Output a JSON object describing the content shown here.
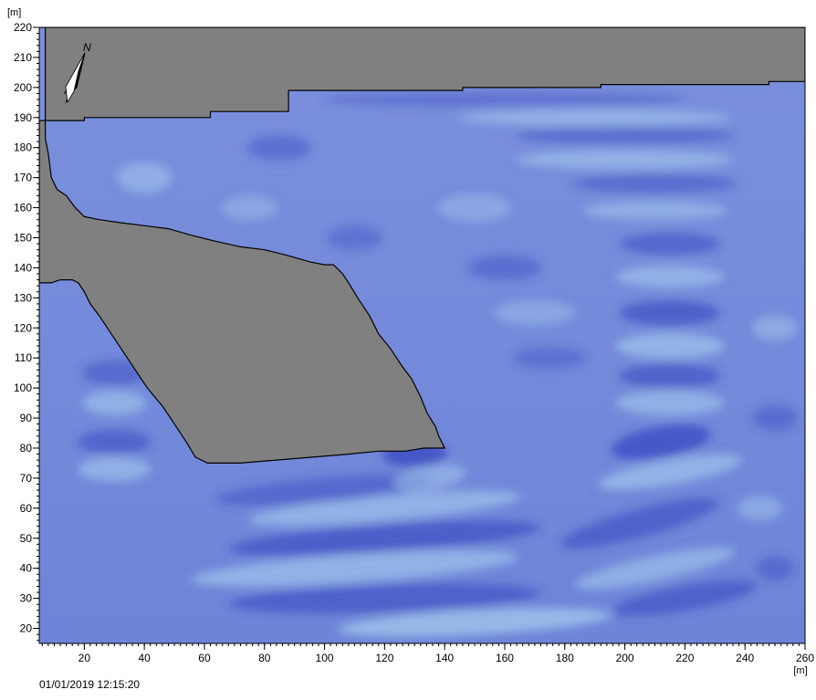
{
  "chart_data": {
    "type": "heatmap",
    "title": "",
    "xlabel": "[m]",
    "ylabel": "[m]",
    "xlim": [
      5,
      260
    ],
    "ylim": [
      15,
      220
    ],
    "x_ticks": [
      20,
      40,
      60,
      80,
      100,
      120,
      140,
      160,
      180,
      200,
      220,
      240,
      260
    ],
    "y_ticks": [
      20,
      30,
      40,
      50,
      60,
      70,
      80,
      90,
      100,
      110,
      120,
      130,
      140,
      150,
      160,
      170,
      180,
      190,
      200,
      210,
      220
    ],
    "grid": false,
    "legend": "none",
    "north_arrow_label": "N",
    "timestamp": "01/01/2019 12:15:20",
    "colors": {
      "land": "#808080",
      "water_base": "#7088da",
      "water_dark": "#3344c0",
      "water_light": "#a8d0f0",
      "coastline": "#000000"
    },
    "land_polygons": [
      {
        "name": "north-shore",
        "points": [
          [
            5,
            220
          ],
          [
            260,
            220
          ],
          [
            260,
            202
          ],
          [
            248,
            202
          ],
          [
            248,
            201
          ],
          [
            192,
            201
          ],
          [
            192,
            200
          ],
          [
            146,
            200
          ],
          [
            146,
            199
          ],
          [
            88,
            199
          ],
          [
            88,
            192
          ],
          [
            62,
            192
          ],
          [
            62,
            190
          ],
          [
            20,
            190
          ],
          [
            20,
            189
          ],
          [
            7,
            189
          ],
          [
            7,
            220
          ]
        ]
      },
      {
        "name": "west-shore-and-breakwater",
        "points": [
          [
            5,
            189
          ],
          [
            7,
            189
          ],
          [
            7,
            183
          ],
          [
            8,
            178
          ],
          [
            9,
            170
          ],
          [
            11,
            166
          ],
          [
            14,
            164
          ],
          [
            17,
            160
          ],
          [
            20,
            157
          ],
          [
            25,
            156
          ],
          [
            32,
            155
          ],
          [
            40,
            154
          ],
          [
            48,
            153
          ],
          [
            55,
            151
          ],
          [
            63,
            149
          ],
          [
            72,
            147
          ],
          [
            80,
            146
          ],
          [
            88,
            144
          ],
          [
            95,
            142
          ],
          [
            100,
            141
          ],
          [
            103,
            141
          ],
          [
            106,
            138
          ],
          [
            108,
            135
          ],
          [
            111,
            130
          ],
          [
            115,
            124
          ],
          [
            118,
            118
          ],
          [
            122,
            113
          ],
          [
            126,
            107
          ],
          [
            129,
            103
          ],
          [
            132,
            97
          ],
          [
            134,
            92
          ],
          [
            137,
            87
          ],
          [
            138,
            84
          ],
          [
            140,
            80
          ],
          [
            133,
            80
          ],
          [
            127,
            79
          ],
          [
            118,
            79
          ],
          [
            108,
            78
          ],
          [
            96,
            77
          ],
          [
            84,
            76
          ],
          [
            72,
            75
          ],
          [
            61,
            75
          ],
          [
            57,
            77
          ],
          [
            54,
            82
          ],
          [
            50,
            88
          ],
          [
            46,
            94
          ],
          [
            41,
            100
          ],
          [
            37,
            106
          ],
          [
            33,
            112
          ],
          [
            29,
            118
          ],
          [
            25,
            124
          ],
          [
            22,
            128
          ],
          [
            20,
            132
          ],
          [
            18,
            135
          ],
          [
            16,
            136
          ],
          [
            12,
            136
          ],
          [
            9,
            135
          ],
          [
            5,
            135
          ]
        ]
      }
    ]
  }
}
